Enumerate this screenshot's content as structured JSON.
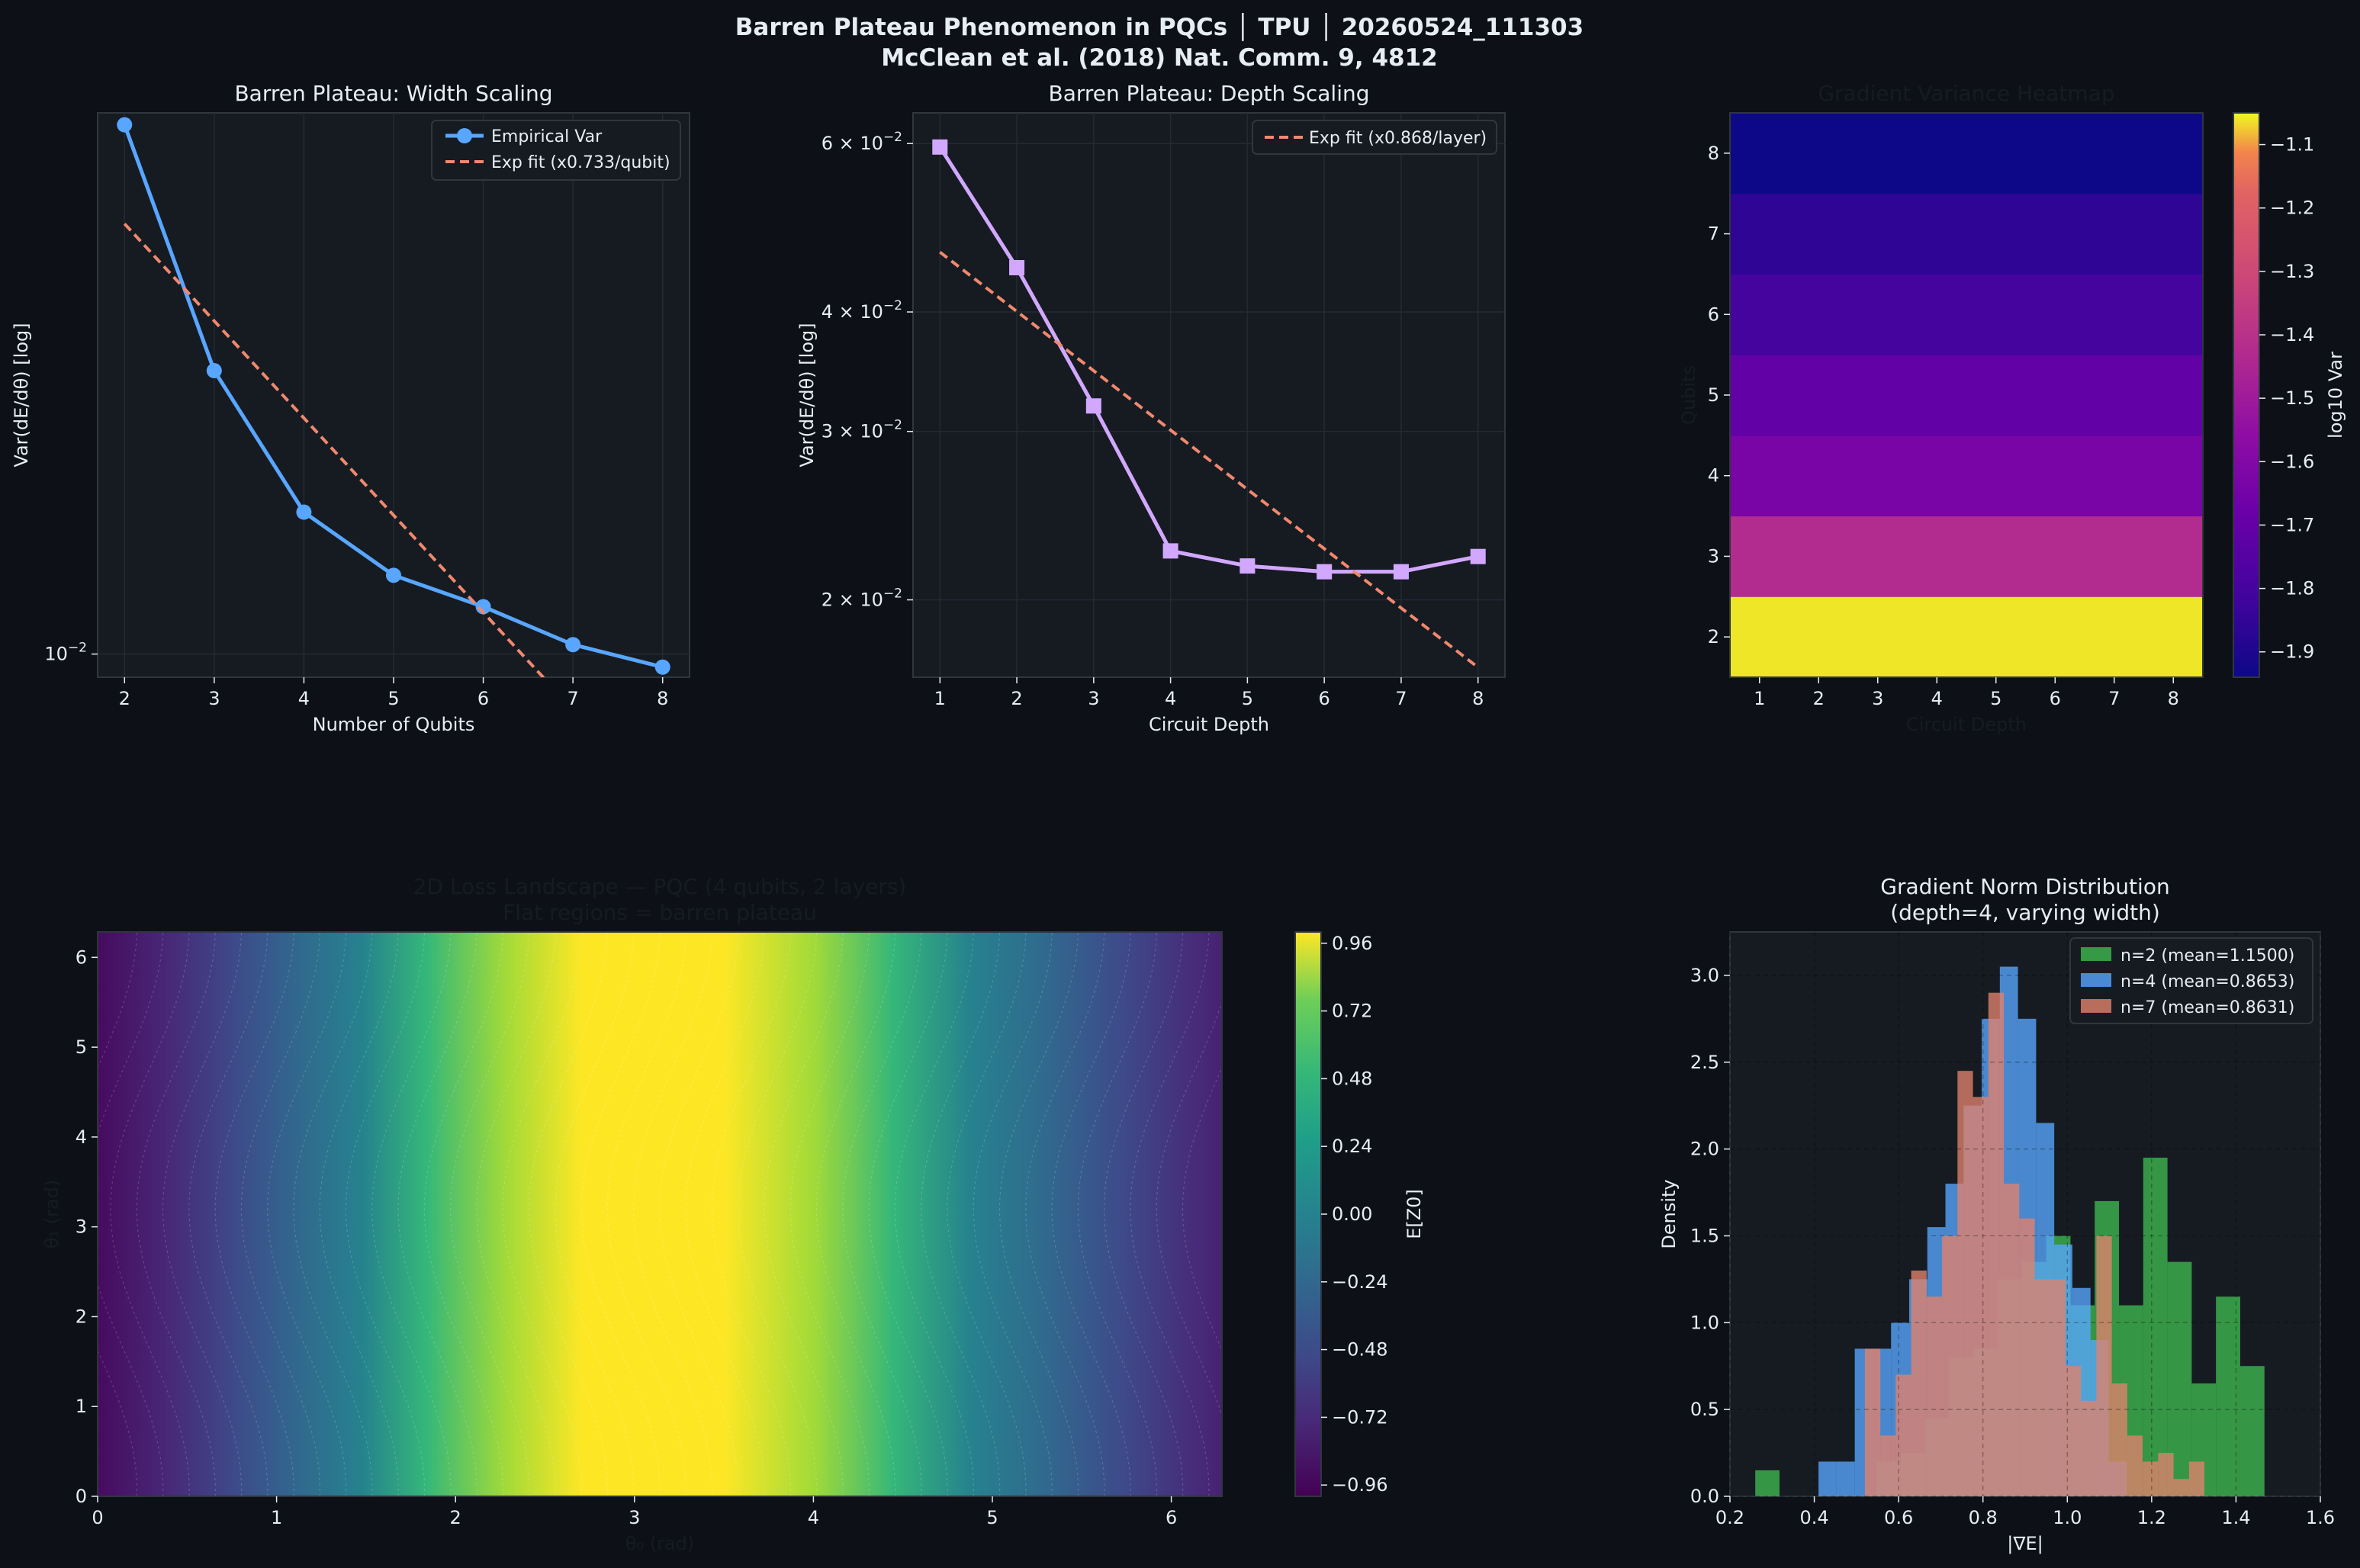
{
  "figure": {
    "title_line1": "Barren Plateau Phenomenon in PQCs │ TPU │ 20260524_111303",
    "title_line2": "McClean et al. (2018) Nat. Comm. 9, 4812",
    "colors": {
      "background": "#0d1117",
      "panel": "#161b22",
      "text": "#e6edf3",
      "spine": "#30363d"
    }
  },
  "chart_data": [
    {
      "id": "width",
      "type": "line",
      "title": "Barren Plateau: Width Scaling",
      "xlabel": "Number of Qubits",
      "ylabel": "Var(dE/dθ) [log]",
      "yscale": "log",
      "xlim": [
        1.7,
        8.3
      ],
      "ylim": [
        0.0093,
        0.0545
      ],
      "x_ticks": [
        "2",
        "3",
        "4",
        "5",
        "6",
        "7",
        "8"
      ],
      "y_ticks": [
        {
          "value": 0.01,
          "label": "10",
          "exp": "−2"
        }
      ],
      "legend": "top-right",
      "series": [
        {
          "name": "Empirical Var",
          "color": "#58a6ff",
          "style": "line-marker",
          "x": [
            2,
            3,
            4,
            5,
            6,
            7,
            8
          ],
          "y": [
            0.0525,
            0.0243,
            0.0156,
            0.0128,
            0.0116,
            0.0103,
            0.0096
          ]
        },
        {
          "name": "Exp fit (x0.733/qubit)",
          "color": "#f0886e",
          "style": "dashed",
          "x": [
            2,
            8
          ],
          "y": [
            0.0385,
            0.0062
          ]
        }
      ]
    },
    {
      "id": "depth",
      "type": "line",
      "title": "Barren Plateau: Depth Scaling",
      "xlabel": "Circuit Depth",
      "ylabel": "Var(dE/dθ) [log]",
      "yscale": "log",
      "xlim": [
        0.65,
        8.35
      ],
      "ylim": [
        0.0166,
        0.0646
      ],
      "x_ticks": [
        "1",
        "2",
        "3",
        "4",
        "5",
        "6",
        "7",
        "8"
      ],
      "y_ticks": [
        {
          "value": 0.02,
          "label": "2 × 10",
          "exp": "−2"
        },
        {
          "value": 0.03,
          "label": "3 × 10",
          "exp": "−2"
        },
        {
          "value": 0.04,
          "label": "4 × 10",
          "exp": "−2"
        },
        {
          "value": 0.06,
          "label": "6 × 10",
          "exp": "−2"
        }
      ],
      "legend": "top-right",
      "series": [
        {
          "name": "",
          "color": "#d2a8ff",
          "style": "line-square",
          "x": [
            1,
            2,
            3,
            4,
            5,
            6,
            7,
            8
          ],
          "y": [
            0.0595,
            0.0445,
            0.0319,
            0.0225,
            0.0217,
            0.0214,
            0.0214,
            0.0222
          ]
        },
        {
          "name": "Exp fit (x0.868/layer)",
          "color": "#f0886e",
          "style": "dashed",
          "x": [
            1,
            8
          ],
          "y": [
            0.0462,
            0.017
          ]
        }
      ]
    },
    {
      "id": "heatmap",
      "type": "heatmap",
      "title": "Gradient Variance Heatmap",
      "xlabel": "Circuit Depth",
      "ylabel": "Qubits",
      "x_ticks": [
        "1",
        "2",
        "3",
        "4",
        "5",
        "6",
        "7",
        "8"
      ],
      "y_ticks": [
        "2",
        "3",
        "4",
        "5",
        "6",
        "7",
        "8"
      ],
      "colorbar_label": "log10 Var",
      "colorbar_range": [
        -1.94,
        -1.05
      ],
      "colorbar_ticks": [
        "−1.1",
        "−1.2",
        "−1.3",
        "−1.4",
        "−1.5",
        "−1.6",
        "−1.7",
        "−1.8",
        "−1.9"
      ],
      "rows": [
        {
          "qubits": 2,
          "value": -1.06
        },
        {
          "qubits": 3,
          "value": -1.43
        },
        {
          "qubits": 4,
          "value": -1.63
        },
        {
          "qubits": 5,
          "value": -1.71
        },
        {
          "qubits": 6,
          "value": -1.8
        },
        {
          "qubits": 7,
          "value": -1.86
        },
        {
          "qubits": 8,
          "value": -1.94
        }
      ]
    },
    {
      "id": "landscape",
      "type": "heatmap",
      "title_line1": "2D Loss Landscape — PQC (4 qubits, 2 layers)",
      "title_line2": "Flat regions = barren plateau",
      "xlabel": "θ₀ (rad)",
      "ylabel": "θ₁ (rad)",
      "xlim": [
        0,
        6.283
      ],
      "ylim": [
        0,
        6.283
      ],
      "x_ticks": [
        "0",
        "1",
        "2",
        "3",
        "4",
        "5",
        "6"
      ],
      "y_ticks": [
        "0",
        "1",
        "2",
        "3",
        "4",
        "5",
        "6"
      ],
      "colorbar_label": "E[Z0]",
      "colorbar_range": [
        -1.0,
        1.0
      ],
      "colorbar_ticks": [
        "0.96",
        "0.72",
        "0.48",
        "0.24",
        "0.00",
        "−0.24",
        "−0.48",
        "−0.72",
        "−0.96"
      ]
    },
    {
      "id": "histogram",
      "type": "bar",
      "title_line1": "Gradient Norm Distribution",
      "title_line2": "(depth=4, varying width)",
      "xlabel": "|∇E|",
      "ylabel": "Density",
      "xlim": [
        0.2,
        1.6
      ],
      "ylim": [
        0,
        3.25
      ],
      "x_ticks": [
        "0.2",
        "0.4",
        "0.6",
        "0.8",
        "1.0",
        "1.2",
        "1.4",
        "1.6"
      ],
      "y_ticks": [
        "0.0",
        "0.5",
        "1.0",
        "1.5",
        "2.0",
        "2.5",
        "3.0"
      ],
      "legend": "top-right",
      "series": [
        {
          "name": "n=2 (mean=1.1500)",
          "color": "#3fb950",
          "bin_start": 0.26,
          "bin_width": 0.0575,
          "values": [
            0.15,
            0,
            0,
            0,
            0,
            0.2,
            0.25,
            0.45,
            0.8,
            0.85,
            1.25,
            1.35,
            1.5,
            1.1,
            1.7,
            1.1,
            1.95,
            1.35,
            0.65,
            1.15,
            0.75
          ]
        },
        {
          "name": "n=4 (mean=0.8653)",
          "color": "#58a6ff",
          "bin_start": 0.41,
          "bin_width": 0.043,
          "values": [
            0.2,
            0.2,
            0.85,
            0.85,
            1.0,
            1.25,
            1.55,
            1.8,
            2.25,
            2.75,
            3.05,
            2.75,
            2.15,
            1.45,
            1.2,
            0.9,
            0.2
          ]
        },
        {
          "name": "n=7 (mean=0.8631)",
          "color": "#e2826c",
          "bin_start": 0.52,
          "bin_width": 0.0366,
          "values": [
            0.85,
            0.35,
            0.7,
            1.3,
            1.15,
            1.5,
            2.45,
            2.3,
            2.9,
            1.8,
            1.6,
            1.25,
            1.25,
            0.75,
            0.55,
            1.5,
            0.65,
            0.35,
            0.2,
            0.25,
            0.1,
            0.2
          ]
        }
      ]
    }
  ]
}
